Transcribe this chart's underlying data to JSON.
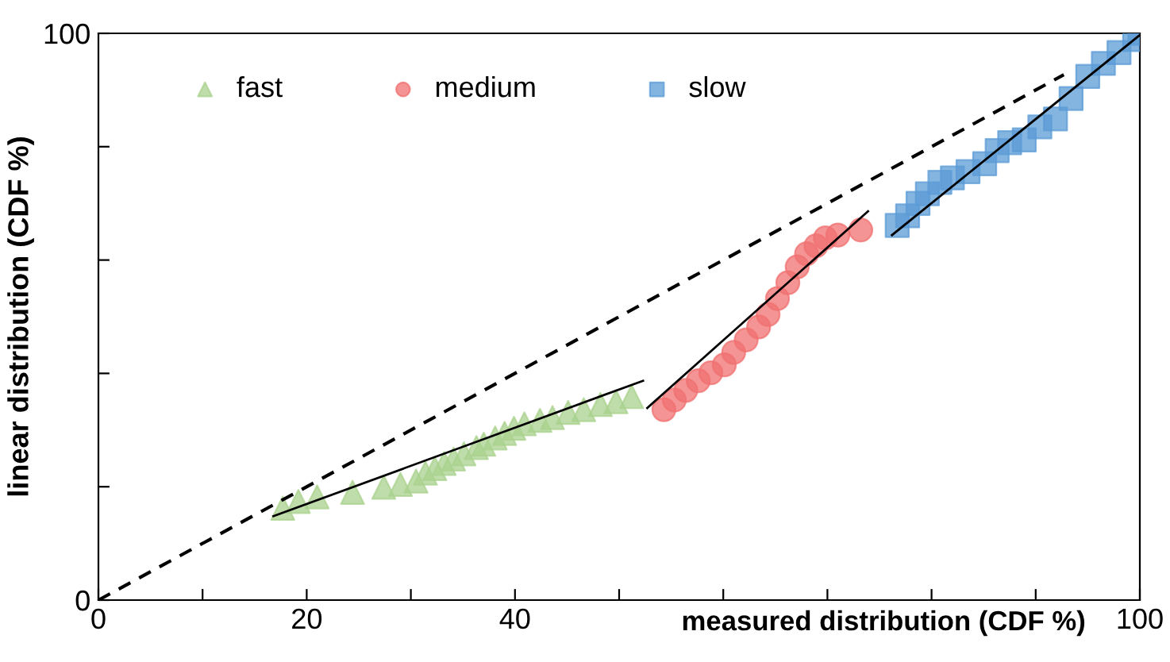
{
  "chart_data": {
    "type": "scatter",
    "xlabel": "measured distribution (CDF %)",
    "ylabel": "linear distribution (CDF %)",
    "xlim": [
      0,
      100
    ],
    "ylim": [
      0,
      100
    ],
    "xticks": [
      0,
      {
        "value": 10,
        "label": null
      },
      20,
      {
        "value": 30,
        "label": null
      },
      40,
      {
        "value": 50,
        "label": null
      },
      {
        "value": 60,
        "label": null
      },
      {
        "value": 70,
        "label": null
      },
      {
        "value": 80,
        "label": null
      },
      {
        "value": 90,
        "label": null
      },
      100
    ],
    "yticks": [
      0,
      {
        "value": 20,
        "label": null
      },
      {
        "value": 40,
        "label": null
      },
      {
        "value": 60,
        "label": null
      },
      {
        "value": 80,
        "label": null
      },
      100
    ],
    "grid": false,
    "legend": "top left",
    "series": [
      {
        "type": "line",
        "color": "#000000",
        "line_style": "dashed",
        "marker": "none",
        "x": [
          0,
          92.7
        ],
        "values": [
          0,
          92.7
        ]
      },
      {
        "name": "fast",
        "marker": "triangle",
        "color": "#a9d18e",
        "x": [
          17.7,
          19.2,
          21.0,
          24.4,
          27.4,
          29.0,
          30.5,
          31.4,
          32.3,
          33.2,
          34.1,
          35.1,
          36.3,
          37.0,
          38.1,
          39.0,
          39.9,
          40.9,
          42.4,
          43.6,
          45.1,
          46.6,
          48.2,
          49.7,
          51.2
        ],
        "values": [
          16.2,
          17.4,
          18.2,
          19.0,
          19.9,
          20.4,
          21.0,
          22.4,
          23.2,
          24.1,
          24.9,
          25.8,
          26.9,
          27.5,
          28.6,
          29.4,
          30.3,
          31.1,
          31.7,
          32.2,
          33.1,
          33.6,
          34.5,
          35.0,
          35.9
        ]
      },
      {
        "name": "medium",
        "marker": "circle",
        "color": "#f07070",
        "x": [
          54.3,
          55.3,
          56.4,
          57.6,
          58.8,
          60.1,
          61.0,
          62.2,
          63.4,
          64.3,
          65.2,
          66.2,
          67.1,
          68.0,
          68.9,
          69.8,
          71.0,
          73.2
        ],
        "values": [
          33.6,
          35.3,
          37.0,
          38.7,
          40.1,
          41.5,
          43.7,
          45.9,
          48.2,
          50.4,
          53.2,
          56.0,
          58.8,
          61.1,
          62.5,
          63.9,
          64.4,
          65.3
        ]
      },
      {
        "name": "slow",
        "marker": "square",
        "color": "#5b9bd5",
        "x": [
          76.7,
          77.7,
          78.7,
          79.6,
          80.8,
          82.0,
          83.5,
          85.1,
          86.3,
          87.5,
          88.9,
          90.4,
          91.9,
          93.4,
          95.0,
          96.5,
          98.0,
          99.5,
          100
        ],
        "values": [
          66.1,
          67.8,
          70.0,
          71.7,
          73.7,
          74.5,
          75.6,
          77.0,
          79.3,
          80.7,
          81.2,
          83.5,
          84.9,
          88.5,
          92.4,
          94.7,
          96.6,
          98.9,
          100
        ]
      },
      {
        "type": "line",
        "color": "#000000",
        "line_style": "solid",
        "marker": "none",
        "x": [
          16.8,
          52.3
        ],
        "values": [
          14.8,
          38.7
        ]
      },
      {
        "type": "line",
        "color": "#000000",
        "line_style": "solid",
        "marker": "none",
        "x": [
          52.7,
          73.9
        ],
        "values": [
          33.9,
          68.6
        ]
      },
      {
        "type": "line",
        "color": "#000000",
        "line_style": "solid",
        "marker": "none",
        "x": [
          76.2,
          100
        ],
        "values": [
          64.4,
          99.7
        ]
      }
    ]
  }
}
